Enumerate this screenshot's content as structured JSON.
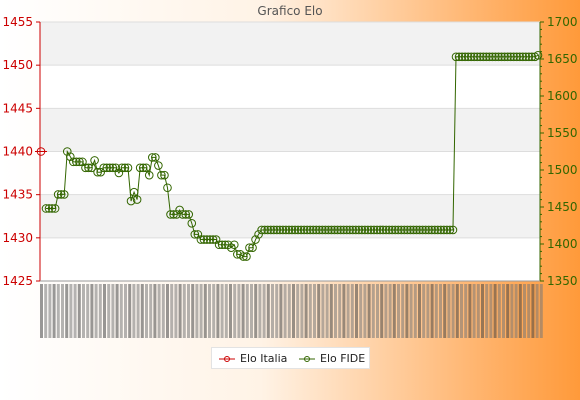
{
  "chart_data": {
    "type": "line",
    "title": "Grafico Elo",
    "left_axis": {
      "ylim": [
        1425,
        1455
      ],
      "ticks": [
        1425,
        1430,
        1435,
        1440,
        1445,
        1450,
        1455
      ],
      "color": "#cc0000"
    },
    "right_axis": {
      "ylim": [
        1350,
        1700
      ],
      "ticks": [
        1350,
        1400,
        1450,
        1500,
        1550,
        1600,
        1650,
        1700
      ],
      "color": "#336600"
    },
    "grid": true,
    "legend_placement": "bottom",
    "series": [
      {
        "name": "Elo Italia",
        "axis": "left",
        "color": "#cc0000",
        "values": [
          1440
        ]
      },
      {
        "name": "Elo FIDE",
        "axis": "right",
        "color": "#336600",
        "values": [
          1448,
          1448,
          1448,
          1448,
          1467,
          1467,
          1467,
          1525,
          1518,
          1511,
          1511,
          1511,
          1511,
          1503,
          1503,
          1503,
          1513,
          1497,
          1497,
          1503,
          1503,
          1503,
          1503,
          1503,
          1496,
          1503,
          1503,
          1503,
          1458,
          1470,
          1460,
          1503,
          1503,
          1503,
          1493,
          1517,
          1517,
          1506,
          1493,
          1493,
          1476,
          1440,
          1440,
          1440,
          1446,
          1440,
          1440,
          1440,
          1428,
          1413,
          1413,
          1406,
          1406,
          1406,
          1406,
          1406,
          1406,
          1399,
          1399,
          1399,
          1399,
          1395,
          1399,
          1386,
          1386,
          1383,
          1383,
          1395,
          1395,
          1406,
          1413,
          1419,
          1419,
          1419,
          1419,
          1419,
          1419,
          1419,
          1419,
          1419,
          1419,
          1419,
          1419,
          1419,
          1419,
          1419,
          1419,
          1419,
          1419,
          1419,
          1419,
          1419,
          1419,
          1419,
          1419,
          1419,
          1419,
          1419,
          1419,
          1419,
          1419,
          1419,
          1419,
          1419,
          1419,
          1419,
          1419,
          1419,
          1419,
          1419,
          1419,
          1419,
          1419,
          1419,
          1419,
          1419,
          1419,
          1419,
          1419,
          1419,
          1419,
          1419,
          1419,
          1419,
          1419,
          1419,
          1419,
          1419,
          1419,
          1419,
          1419,
          1419,
          1419,
          1419,
          1419,
          1653,
          1653,
          1653,
          1653,
          1653,
          1653,
          1653,
          1653,
          1653,
          1653,
          1653,
          1653,
          1653,
          1653,
          1653,
          1653,
          1653,
          1653,
          1653,
          1653,
          1653,
          1653,
          1653,
          1653,
          1653,
          1653,
          1653,
          1655
        ]
      }
    ]
  }
}
